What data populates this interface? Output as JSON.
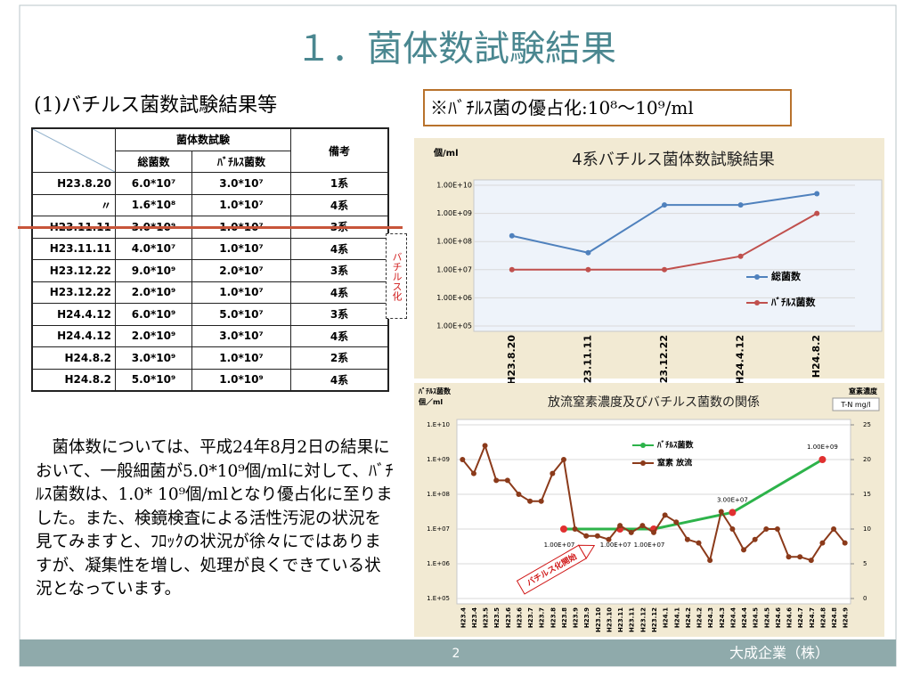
{
  "title": "１．菌体数試験結果",
  "subtitle": "(1)バチルス菌数試験結果等",
  "note": "※ﾊﾞﾁﾙｽ菌の優占化:10⁸〜10⁹/ml",
  "side_label": "バチルス化",
  "table": {
    "header": {
      "group": "菌体数試験",
      "total": "総菌数",
      "bacillus": "ﾊﾞﾁﾙｽ菌数",
      "remark": "備考"
    },
    "rows": [
      [
        "H23.8.20",
        "6.0*10⁷",
        "3.0*10⁷",
        "1系"
      ],
      [
        "〃",
        "1.6*10⁸",
        "1.0*10⁷",
        "4系"
      ],
      [
        "H23.11.11",
        "3.0*10⁹",
        "1.0*10⁷",
        "3系"
      ],
      [
        "H23.11.11",
        "4.0*10⁷",
        "1.0*10⁷",
        "4系"
      ],
      [
        "H23.12.22",
        "9.0*10⁹",
        "2.0*10⁷",
        "3系"
      ],
      [
        "H23.12.22",
        "2.0*10⁹",
        "1.0*10⁷",
        "4系"
      ],
      [
        "H24.4.12",
        "6.0*10⁹",
        "5.0*10⁷",
        "3系"
      ],
      [
        "H24.4.12",
        "2.0*10⁹",
        "3.0*10⁷",
        "4系"
      ],
      [
        "H24.8.2",
        "3.0*10⁹",
        "1.0*10⁷",
        "2系"
      ],
      [
        "H24.8.2",
        "5.0*10⁹",
        "1.0*10⁹",
        "4系"
      ]
    ]
  },
  "paragraph": "菌体数については、平成24年8月2日の結果において、一般細菌が5.0*10⁹個/mlに対して、ﾊﾞﾁﾙｽ菌数は、1.0* 10⁹個/mlとなり優占化に至りました。また、検鏡検査による活性汚泥の状況を見てみますと、ﾌﾛｯｸの状況が徐々にではありますが、凝集性を増し、処理が良くできている状況となっています。",
  "chart_data": [
    {
      "type": "line",
      "title": "4系バチルス菌体数試験結果",
      "ylabel": "個/ml",
      "log_scale": true,
      "grid": true,
      "legend": "right",
      "categories": [
        "H23.8.20",
        "H23.11.11",
        "H23.12.22",
        "H24.4.12",
        "H24.8.2"
      ],
      "ylim": [
        100000,
        10000000000
      ],
      "yticks": [
        {
          "value": 100000,
          "label": "1.00E+05"
        },
        {
          "value": 1000000,
          "label": "1.00E+06"
        },
        {
          "value": 10000000,
          "label": "1.00E+07"
        },
        {
          "value": 100000000,
          "label": "1.00E+08"
        },
        {
          "value": 1000000000,
          "label": "1.00E+09"
        },
        {
          "value": 10000000000,
          "label": "1.00E+10"
        }
      ],
      "series": [
        {
          "name": "総菌数",
          "color": "#4f81bd",
          "values": [
            160000000,
            40000000,
            2000000000,
            2000000000,
            5000000000
          ]
        },
        {
          "name": "ﾊﾞﾁﾙｽ菌数",
          "color": "#c0504d",
          "values": [
            10000000,
            10000000,
            10000000,
            30000000,
            1000000000
          ]
        }
      ]
    },
    {
      "type": "line",
      "title": "放流窒素濃度及びバチルス菌数の関係",
      "ylabel": "ﾊﾞﾁﾙｽ菌数",
      "yunit": "個／ml",
      "y2label": "窒素濃度",
      "y2unit": "T-N mg/l",
      "log_scale": true,
      "grid": true,
      "span_gaps": true,
      "annotation": "バチルス化開始",
      "categories": [
        "H23.4",
        "H23.4",
        "H23.5",
        "H23.5",
        "H23.6",
        "H23.6",
        "H23.7",
        "H23.7",
        "H23.8",
        "H23.8",
        "H23.9",
        "H23.9",
        "H23.10",
        "H23.10",
        "H23.11",
        "H23.11",
        "H23.12",
        "H23.12",
        "H24.1",
        "H24.1",
        "H24.2",
        "H24.2",
        "H24.3",
        "H24.3",
        "H24.4",
        "H24.4",
        "H24.5",
        "H24.5",
        "H24.6",
        "H24.6",
        "H24.7",
        "H24.7",
        "H24.8",
        "H24.8",
        "H24.9"
      ],
      "ylim": [
        100000,
        10000000000
      ],
      "yticks": [
        {
          "value": 100000,
          "label": "1.E+05"
        },
        {
          "value": 1000000,
          "label": "1.E+06"
        },
        {
          "value": 10000000,
          "label": "1.E+07"
        },
        {
          "value": 100000000,
          "label": "1.E+08"
        },
        {
          "value": 1000000000,
          "label": "1.E+09"
        },
        {
          "value": 10000000000,
          "label": "1.E+10"
        }
      ],
      "y2lim": [
        0,
        25
      ],
      "y2ticks": [
        0,
        5,
        10,
        15,
        20,
        25
      ],
      "series": [
        {
          "name": "ﾊﾞﾁﾙｽ菌数",
          "color": "#2db34a",
          "marker_color": "#e03030",
          "values": [
            null,
            null,
            null,
            null,
            null,
            null,
            null,
            null,
            null,
            10000000,
            null,
            null,
            null,
            null,
            10000000,
            null,
            null,
            10000000,
            null,
            null,
            null,
            null,
            null,
            null,
            30000000,
            null,
            null,
            null,
            null,
            null,
            null,
            null,
            1000000000,
            null,
            null
          ],
          "value_labels": [
            null,
            null,
            null,
            null,
            null,
            null,
            null,
            null,
            null,
            "1.00E+07",
            null,
            null,
            null,
            null,
            "1.00E+07",
            null,
            null,
            "1.00E+07",
            null,
            null,
            null,
            null,
            null,
            null,
            "3.00E+07",
            null,
            null,
            null,
            null,
            null,
            null,
            null,
            "1.00E+09",
            null,
            null
          ]
        },
        {
          "name": "窒素 放流",
          "color": "#8b3a1a",
          "axis": "y2",
          "values": [
            20,
            18,
            22,
            17,
            17,
            15,
            14,
            14,
            18,
            20,
            10,
            9,
            9,
            8.5,
            10.5,
            9.5,
            10.5,
            9.5,
            12,
            11,
            8.5,
            8,
            5.5,
            12.5,
            10,
            7,
            8.5,
            10,
            10,
            6,
            6,
            5.5,
            8,
            10,
            8
          ]
        }
      ]
    }
  ],
  "footer": {
    "page": "2",
    "company": "大成企業（株）"
  }
}
